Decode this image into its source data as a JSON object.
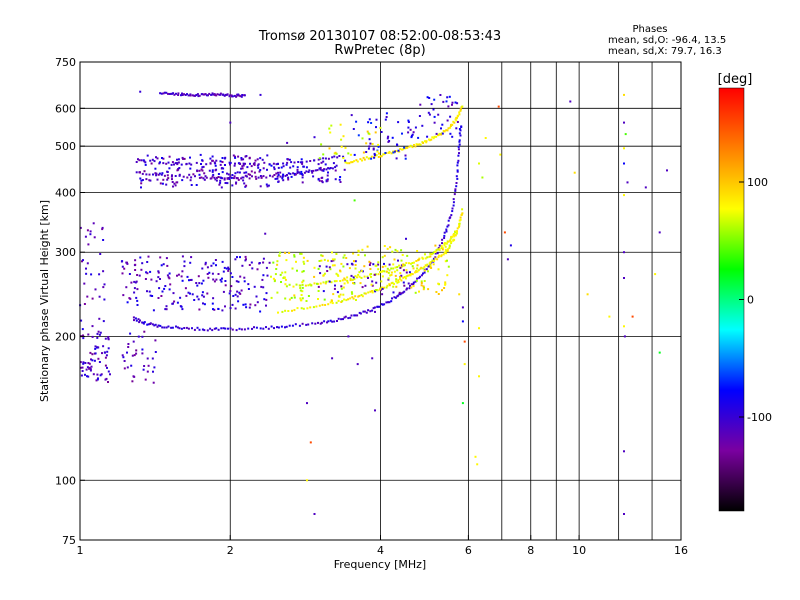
{
  "title": {
    "line1": "Tromsø 20130107 08:52:00-08:53:43",
    "line2": "RwPretec (8p)"
  },
  "stats": {
    "heading": "Phases",
    "line_o": "mean, sd,O:  -96.4, 13.5",
    "line_x": "mean, sd,X:  79.7, 16.3"
  },
  "colorbar": {
    "label": "[deg]",
    "range": [
      -180,
      180
    ],
    "ticks": [
      {
        "value": 100,
        "label": "100"
      },
      {
        "value": 0,
        "label": "0"
      },
      {
        "value": -100,
        "label": "-100"
      }
    ],
    "stops": [
      "#000000",
      "#7a00a0",
      "#0000ff",
      "#00ffff",
      "#00ff00",
      "#ffff00",
      "#ff7f00",
      "#ff0000"
    ]
  },
  "chart_data": {
    "type": "scatter",
    "xlabel": "Frequency [MHz]",
    "ylabel": "Stationary phase Virtual Height [km]",
    "xscale": "log",
    "yscale": "log",
    "xlim": [
      1,
      16
    ],
    "ylim": [
      75,
      750
    ],
    "grid": true,
    "xticks": [
      {
        "value": 1,
        "label": "1"
      },
      {
        "value": 2,
        "label": "2"
      },
      {
        "value": 4,
        "label": "4"
      },
      {
        "value": 6,
        "label": "6"
      },
      {
        "value": 8,
        "label": "8"
      },
      {
        "value": 10,
        "label": "10"
      },
      {
        "value": 16,
        "label": "16"
      }
    ],
    "yticks": [
      {
        "value": 75,
        "label": "75"
      },
      {
        "value": 100,
        "label": "100"
      },
      {
        "value": 200,
        "label": "200"
      },
      {
        "value": 300,
        "label": "300"
      },
      {
        "value": 400,
        "label": "400"
      },
      {
        "value": 500,
        "label": "500"
      },
      {
        "value": 600,
        "label": "600"
      },
      {
        "value": 750,
        "label": "750"
      }
    ],
    "xgrid": [
      2,
      4,
      6,
      7,
      8,
      9,
      10,
      12,
      14,
      16
    ],
    "ygrid": [
      100,
      200,
      300,
      400,
      500,
      600,
      750
    ],
    "color_by": "phase [deg]",
    "traces": [
      {
        "x": [
          1.28,
          1.35,
          1.45,
          1.6,
          1.8,
          2.0,
          2.3,
          2.6,
          3.0,
          3.3,
          3.6,
          3.9,
          4.2,
          4.5,
          4.8,
          5.1,
          5.35,
          5.55,
          5.68,
          5.75,
          5.8
        ],
        "y": [
          218,
          213,
          210,
          208,
          207,
          207,
          208,
          210,
          213,
          217,
          222,
          229,
          238,
          250,
          266,
          288,
          320,
          360,
          420,
          490,
          560
        ],
        "phase": -100
      },
      {
        "x": [
          1.3,
          1.5,
          1.8,
          2.1,
          2.4,
          2.7,
          3.0,
          3.3
        ],
        "y": [
          440,
          432,
          430,
          430,
          432,
          437,
          445,
          455
        ],
        "phase": -110
      },
      {
        "x": [
          1.3,
          1.6,
          2.0,
          2.5,
          3.0,
          3.4
        ],
        "y": [
          465,
          460,
          458,
          460,
          468,
          478
        ],
        "phase": -105
      },
      {
        "x": [
          2.5,
          2.9,
          3.3,
          3.6,
          3.9,
          4.2,
          4.5,
          4.8,
          5.1,
          5.4,
          5.6,
          5.75,
          5.85
        ],
        "y": [
          225,
          230,
          236,
          242,
          249,
          257,
          266,
          276,
          288,
          300,
          318,
          340,
          370
        ],
        "phase": 80
      },
      {
        "x": [
          2.6,
          3.0,
          3.4,
          3.8,
          4.2,
          4.6,
          5.0,
          5.3,
          5.5,
          5.7
        ],
        "y": [
          255,
          258,
          262,
          268,
          276,
          285,
          295,
          306,
          318,
          335
        ],
        "phase": 75
      },
      {
        "x": [
          3.4,
          3.7,
          4.0,
          4.3,
          4.6,
          4.9,
          5.2,
          5.5,
          5.7,
          5.85
        ],
        "y": [
          460,
          470,
          478,
          488,
          498,
          510,
          525,
          545,
          575,
          610
        ],
        "phase": 85
      },
      {
        "x": [
          1.45,
          1.55,
          1.65,
          1.75,
          1.85,
          1.95,
          2.05,
          2.15
        ],
        "y": [
          648,
          642,
          640,
          640,
          641,
          640,
          638,
          636
        ],
        "phase": -110
      }
    ],
    "clusters": [
      {
        "x": [
          1.0,
          1.15
        ],
        "y": [
          160,
          205
        ],
        "phase": -110,
        "count": 70
      },
      {
        "x": [
          1.0,
          1.12
        ],
        "y": [
          205,
          360
        ],
        "phase": -110,
        "count": 35
      },
      {
        "x": [
          1.2,
          1.42
        ],
        "y": [
          160,
          205
        ],
        "phase": -110,
        "count": 35
      },
      {
        "x": [
          1.2,
          2.4
        ],
        "y": [
          225,
          295
        ],
        "phase": -105,
        "count": 210
      },
      {
        "x": [
          1.3,
          2.4
        ],
        "y": [
          410,
          480
        ],
        "phase": -108,
        "count": 200
      },
      {
        "x": [
          2.4,
          3.4
        ],
        "y": [
          420,
          470
        ],
        "phase": -100,
        "count": 80
      },
      {
        "x": [
          3.4,
          4.6
        ],
        "y": [
          470,
          590
        ],
        "phase": -90,
        "count": 45
      },
      {
        "x": [
          4.5,
          5.8
        ],
        "y": [
          520,
          640
        ],
        "phase": -95,
        "count": 45
      },
      {
        "x": [
          3.0,
          4.6
        ],
        "y": [
          245,
          290
        ],
        "phase": -110,
        "count": 55
      },
      {
        "x": [
          2.4,
          3.6
        ],
        "y": [
          235,
          300
        ],
        "phase": 75,
        "count": 120
      },
      {
        "x": [
          3.6,
          5.5
        ],
        "y": [
          245,
          310
        ],
        "phase": 80,
        "count": 110
      },
      {
        "x": [
          3.0,
          4.0
        ],
        "y": [
          470,
          560
        ],
        "phase": 80,
        "count": 30
      }
    ],
    "points": [
      {
        "x": 1.32,
        "y": 650,
        "phase": -100
      },
      {
        "x": 2.0,
        "y": 560,
        "phase": -110
      },
      {
        "x": 2.3,
        "y": 640,
        "phase": -100
      },
      {
        "x": 2.6,
        "y": 508,
        "phase": -110
      },
      {
        "x": 2.95,
        "y": 522,
        "phase": -100
      },
      {
        "x": 2.35,
        "y": 328,
        "phase": -110
      },
      {
        "x": 3.55,
        "y": 385,
        "phase": 40
      },
      {
        "x": 3.6,
        "y": 175,
        "phase": -110
      },
      {
        "x": 3.45,
        "y": 200,
        "phase": -110
      },
      {
        "x": 3.2,
        "y": 180,
        "phase": -110
      },
      {
        "x": 3.85,
        "y": 180,
        "phase": -110
      },
      {
        "x": 3.9,
        "y": 225,
        "phase": -110
      },
      {
        "x": 3.9,
        "y": 140,
        "phase": -110
      },
      {
        "x": 4.5,
        "y": 320,
        "phase": -100
      },
      {
        "x": 2.85,
        "y": 145,
        "phase": -110
      },
      {
        "x": 2.9,
        "y": 120,
        "phase": 150
      },
      {
        "x": 2.85,
        "y": 100,
        "phase": 80
      },
      {
        "x": 2.95,
        "y": 85,
        "phase": -110
      },
      {
        "x": 5.75,
        "y": 245,
        "phase": 90
      },
      {
        "x": 5.85,
        "y": 230,
        "phase": -110
      },
      {
        "x": 5.85,
        "y": 215,
        "phase": -80
      },
      {
        "x": 5.9,
        "y": 195,
        "phase": 150
      },
      {
        "x": 5.9,
        "y": 175,
        "phase": 80
      },
      {
        "x": 5.85,
        "y": 145,
        "phase": 20
      },
      {
        "x": 6.3,
        "y": 208,
        "phase": 80
      },
      {
        "x": 6.3,
        "y": 165,
        "phase": 80
      },
      {
        "x": 6.2,
        "y": 112,
        "phase": 80
      },
      {
        "x": 6.25,
        "y": 108,
        "phase": 80
      },
      {
        "x": 6.3,
        "y": 460,
        "phase": 70
      },
      {
        "x": 6.4,
        "y": 430,
        "phase": 60
      },
      {
        "x": 6.5,
        "y": 520,
        "phase": 80
      },
      {
        "x": 6.9,
        "y": 605,
        "phase": 150
      },
      {
        "x": 6.95,
        "y": 480,
        "phase": 80
      },
      {
        "x": 7.1,
        "y": 330,
        "phase": 150
      },
      {
        "x": 7.3,
        "y": 310,
        "phase": -90
      },
      {
        "x": 7.2,
        "y": 290,
        "phase": -110
      },
      {
        "x": 9.6,
        "y": 620,
        "phase": -110
      },
      {
        "x": 9.8,
        "y": 440,
        "phase": 90
      },
      {
        "x": 10.4,
        "y": 245,
        "phase": 90
      },
      {
        "x": 11.5,
        "y": 220,
        "phase": 80
      },
      {
        "x": 12.3,
        "y": 640,
        "phase": 90
      },
      {
        "x": 12.3,
        "y": 560,
        "phase": -110
      },
      {
        "x": 12.4,
        "y": 530,
        "phase": 40
      },
      {
        "x": 12.3,
        "y": 495,
        "phase": 80
      },
      {
        "x": 12.3,
        "y": 460,
        "phase": -80
      },
      {
        "x": 12.5,
        "y": 420,
        "phase": -110
      },
      {
        "x": 12.3,
        "y": 395,
        "phase": 80
      },
      {
        "x": 12.3,
        "y": 300,
        "phase": -110
      },
      {
        "x": 12.3,
        "y": 265,
        "phase": -110
      },
      {
        "x": 12.3,
        "y": 210,
        "phase": 80
      },
      {
        "x": 12.35,
        "y": 200,
        "phase": -110
      },
      {
        "x": 12.3,
        "y": 115,
        "phase": -110
      },
      {
        "x": 12.3,
        "y": 85,
        "phase": -110
      },
      {
        "x": 12.8,
        "y": 220,
        "phase": 150
      },
      {
        "x": 13.6,
        "y": 410,
        "phase": -110
      },
      {
        "x": 14.2,
        "y": 270,
        "phase": 80
      },
      {
        "x": 14.5,
        "y": 330,
        "phase": -110
      },
      {
        "x": 14.5,
        "y": 185,
        "phase": 20
      },
      {
        "x": 15.0,
        "y": 445,
        "phase": -110
      }
    ]
  }
}
